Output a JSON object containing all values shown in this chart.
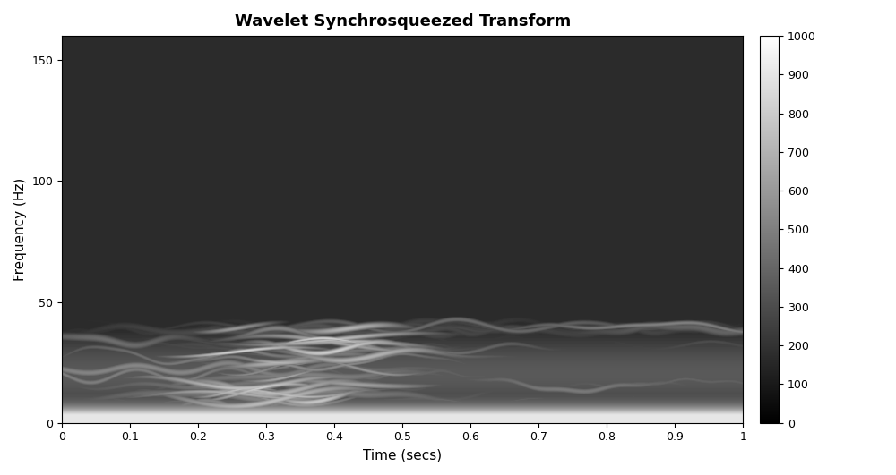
{
  "title": "Wavelet Synchrosqueezed Transform",
  "xlabel": "Time (secs)",
  "ylabel": "Frequency (Hz)",
  "xlim": [
    0,
    1
  ],
  "ylim": [
    0,
    160
  ],
  "yticks": [
    0,
    50,
    100,
    150
  ],
  "xticks": [
    0,
    0.1,
    0.2,
    0.3,
    0.4,
    0.5,
    0.6,
    0.7,
    0.8,
    0.9,
    1.0
  ],
  "colorbar_ticks": [
    0,
    100,
    200,
    300,
    400,
    500,
    600,
    700,
    800,
    900,
    1000
  ],
  "colorbar_range": [
    0,
    1000
  ],
  "bg_gray": 0.17,
  "title_fontsize": 13,
  "label_fontsize": 11,
  "tick_fontsize": 9
}
